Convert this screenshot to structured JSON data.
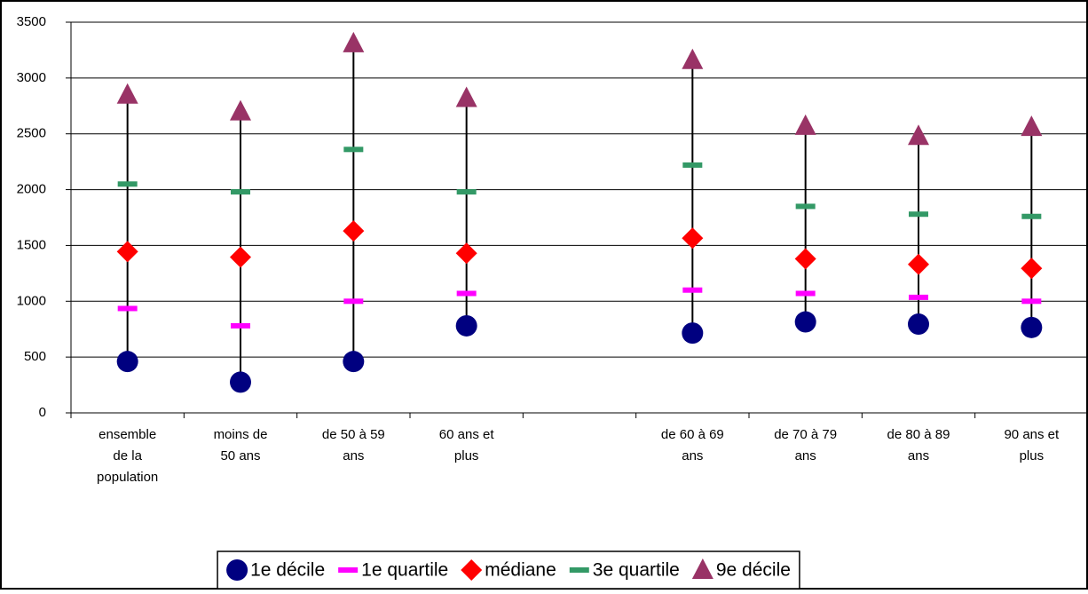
{
  "chart_data": {
    "type": "range-marker",
    "categories": [
      "ensemble de la population",
      "moins de 50 ans",
      "de 50 à 59 ans",
      "60 ans et plus",
      null,
      "de 60 à 69 ans",
      "de 70 à 79 ans",
      "de 80 à 89 ans",
      "90 ans et plus"
    ],
    "series": [
      {
        "name": "1e décile",
        "color": "#000080",
        "marker": "circle",
        "values": [
          460,
          275,
          460,
          780,
          null,
          715,
          815,
          795,
          765
        ]
      },
      {
        "name": "1e quartile",
        "color": "#ff00ff",
        "marker": "dash",
        "values": [
          935,
          780,
          1000,
          1070,
          null,
          1100,
          1070,
          1035,
          1000
        ]
      },
      {
        "name": "médiane",
        "color": "#ff0000",
        "marker": "diamond",
        "values": [
          1445,
          1395,
          1630,
          1430,
          null,
          1565,
          1380,
          1330,
          1295
        ]
      },
      {
        "name": "3e quartile",
        "color": "#339966",
        "marker": "dash",
        "values": [
          2050,
          1980,
          2360,
          1980,
          null,
          2220,
          1850,
          1780,
          1760
        ]
      },
      {
        "name": "9e décile",
        "color": "#993366",
        "marker": "triangle",
        "values": [
          2850,
          2700,
          3310,
          2820,
          null,
          3160,
          2570,
          2480,
          2560
        ]
      }
    ],
    "high_low_lines": true,
    "ylim": [
      0,
      3500
    ],
    "yticks": [
      0,
      500,
      1000,
      1500,
      2000,
      2500,
      3000,
      3500
    ],
    "grid": true,
    "legend": "bottom"
  }
}
